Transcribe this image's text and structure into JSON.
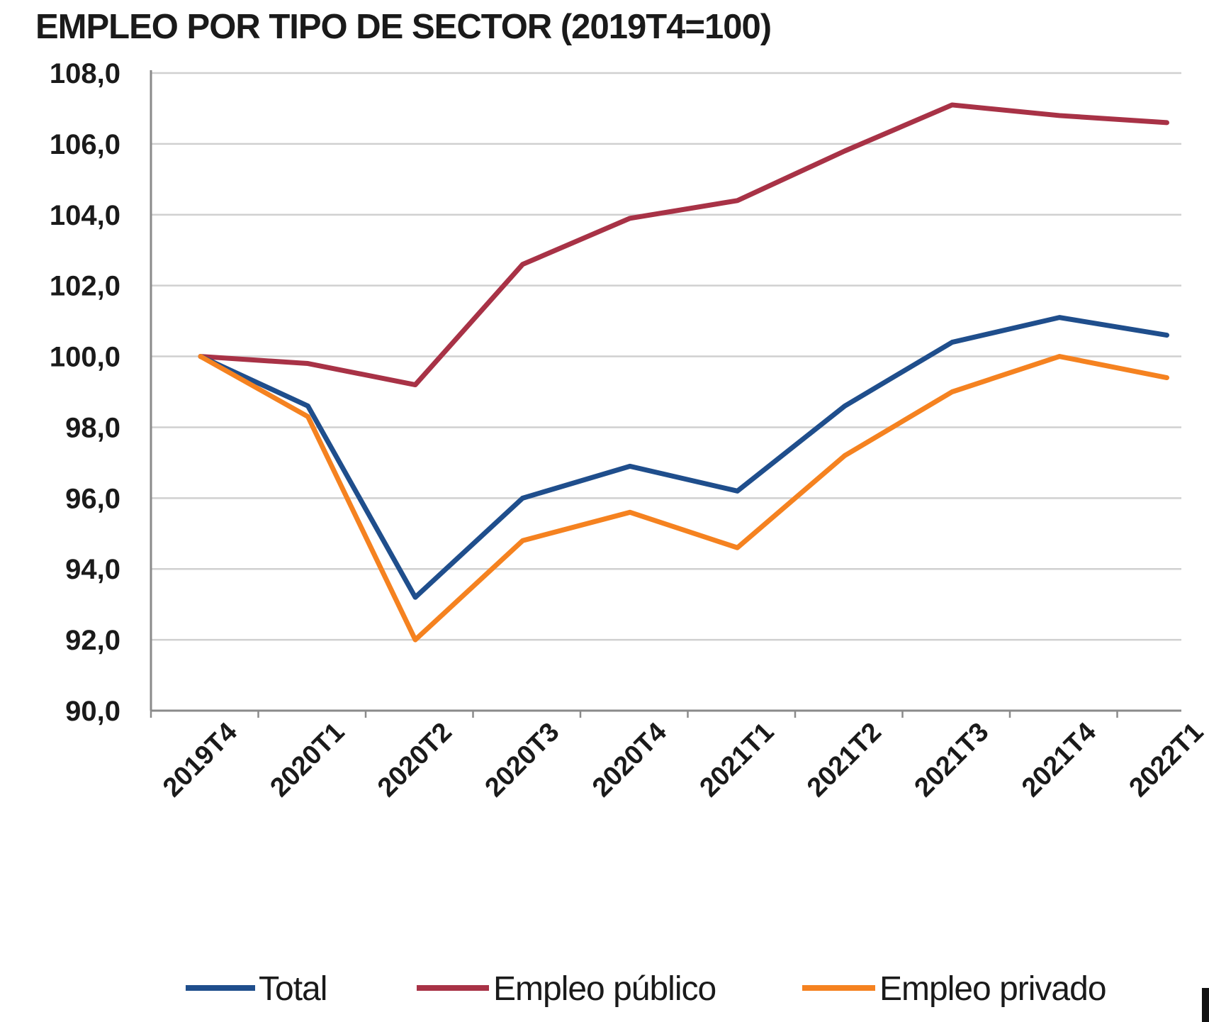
{
  "chart_data": {
    "type": "line",
    "title": "EMPLEO POR TIPO DE SECTOR (2019T4=100)",
    "xlabel": "",
    "ylabel": "",
    "categories": [
      "2019T4",
      "2020T1",
      "2020T2",
      "2020T3",
      "2020T4",
      "2021T1",
      "2021T2",
      "2021T3",
      "2021T4",
      "2022T1"
    ],
    "ylim": [
      90,
      108
    ],
    "yticks": [
      90,
      92,
      94,
      96,
      98,
      100,
      102,
      104,
      106,
      108
    ],
    "ytick_labels": [
      "90,0",
      "92,0",
      "94,0",
      "96,0",
      "98,0",
      "100,0",
      "102,0",
      "104,0",
      "106,0",
      "108,0"
    ],
    "grid": true,
    "legend_position": "bottom",
    "series": [
      {
        "name": "Total",
        "color": "#1f4e8c",
        "values": [
          100.0,
          98.6,
          93.2,
          96.0,
          96.9,
          96.2,
          98.6,
          100.4,
          101.1,
          100.6
        ]
      },
      {
        "name": "Empleo público",
        "color": "#a83246",
        "values": [
          100.0,
          99.8,
          99.2,
          102.6,
          103.9,
          104.4,
          105.8,
          107.1,
          106.8,
          106.6
        ]
      },
      {
        "name": "Empleo privado",
        "color": "#f58220",
        "values": [
          100.0,
          98.3,
          92.0,
          94.8,
          95.6,
          94.6,
          97.2,
          99.0,
          100.0,
          99.4
        ]
      }
    ]
  }
}
